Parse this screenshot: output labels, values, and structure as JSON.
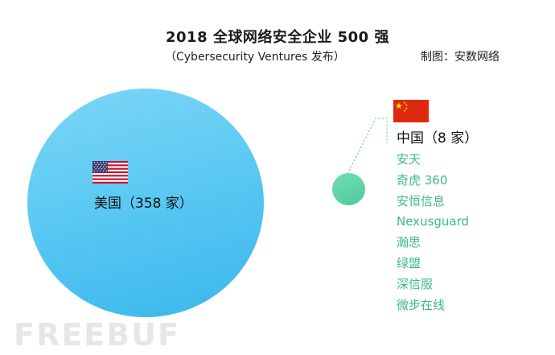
{
  "title": "2018 全球网络安全企业 500 强",
  "subtitle": "（Cybersecurity Ventures 发布）",
  "credit": "制图：安数网络",
  "usa": {
    "label": "美国（358 家）",
    "count": 358,
    "circle_color": "#55c6f2"
  },
  "china": {
    "label": "中国（8 家）",
    "count": 8,
    "circle_color": "#4fcb9c",
    "companies": [
      "安天",
      "奇虎 360",
      "安恒信息",
      "Nexusguard",
      "瀚思",
      "绿盟",
      "深信服",
      "微步在线"
    ],
    "list_color": "#3db88b"
  },
  "watermark": "FREEBUF"
}
